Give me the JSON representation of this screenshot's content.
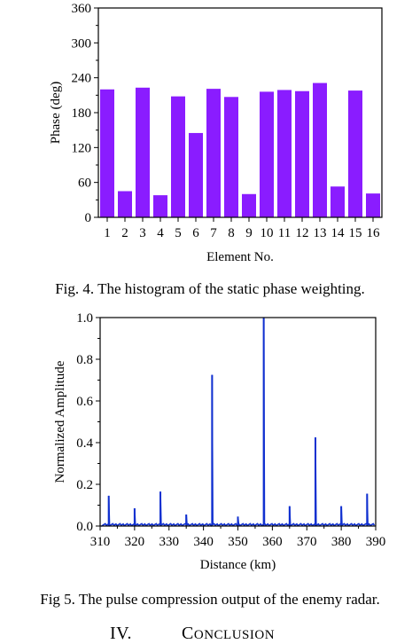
{
  "figures": {
    "fig4": {
      "caption": "Fig. 4. The histogram of the static phase weighting."
    },
    "fig5": {
      "caption": "Fig 5. The pulse compression output of the enemy radar."
    }
  },
  "section": {
    "number": "IV.",
    "title_initial": "C",
    "title_rest": "ONCLUSION"
  },
  "chart_data": [
    {
      "type": "bar",
      "title": "",
      "xlabel": "Element No.",
      "ylabel": "Phase (deg)",
      "ylim": [
        0,
        360
      ],
      "yticks": [
        0,
        60,
        120,
        180,
        240,
        300,
        360
      ],
      "categories": [
        "1",
        "2",
        "3",
        "4",
        "5",
        "6",
        "7",
        "8",
        "9",
        "10",
        "11",
        "12",
        "13",
        "14",
        "15",
        "16"
      ],
      "values": [
        220,
        45,
        223,
        38,
        208,
        145,
        221,
        207,
        40,
        216,
        219,
        217,
        231,
        53,
        218,
        41
      ],
      "color": "#8a1cff",
      "grid": false
    },
    {
      "type": "line",
      "title": "",
      "xlabel": "Distance (km)",
      "ylabel": "Normalized Amplitude",
      "xlim": [
        310,
        390
      ],
      "ylim": [
        0,
        1.0
      ],
      "xticks": [
        310,
        320,
        330,
        340,
        350,
        360,
        370,
        380,
        390
      ],
      "yticks": [
        0.0,
        0.2,
        0.4,
        0.6,
        0.8,
        1.0
      ],
      "ytick_labels": [
        "0.0",
        "0.2",
        "0.4",
        "0.6",
        "0.8",
        "1.0"
      ],
      "peaks": [
        {
          "x": 312.5,
          "y": 0.145
        },
        {
          "x": 320.0,
          "y": 0.085
        },
        {
          "x": 327.5,
          "y": 0.165
        },
        {
          "x": 335.0,
          "y": 0.055
        },
        {
          "x": 342.5,
          "y": 0.725
        },
        {
          "x": 350.0,
          "y": 0.045
        },
        {
          "x": 357.5,
          "y": 1.0
        },
        {
          "x": 365.0,
          "y": 0.095
        },
        {
          "x": 372.5,
          "y": 0.425
        },
        {
          "x": 380.0,
          "y": 0.095
        },
        {
          "x": 387.5,
          "y": 0.155
        }
      ],
      "color": "#1030d0",
      "grid": false
    }
  ]
}
